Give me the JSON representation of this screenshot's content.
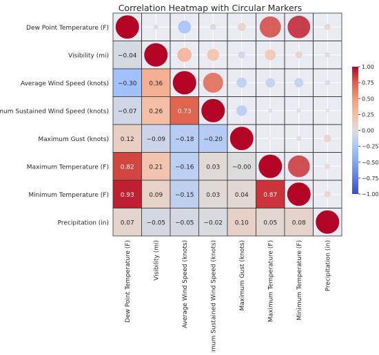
{
  "chart_data": {
    "type": "heatmap",
    "title": "Correlation Heatmap with Circular Markers",
    "variables": [
      "Dew Point Temperature (F)",
      "Visibility (mi)",
      "Average Wind Speed (knots)",
      "Maximum Sustained Wind Speed (knots)",
      "Maximum Gust (knots)",
      "Maximum Temperature (F)",
      "Minimum Temperature (F)",
      "Precipitation (in)"
    ],
    "matrix": [
      [
        1.0,
        -0.04,
        -0.3,
        -0.07,
        0.12,
        0.82,
        0.93,
        0.07
      ],
      [
        -0.04,
        1.0,
        0.36,
        0.26,
        -0.09,
        0.21,
        0.09,
        -0.05
      ],
      [
        -0.3,
        0.36,
        1.0,
        0.73,
        -0.18,
        -0.16,
        -0.15,
        -0.05
      ],
      [
        -0.07,
        0.26,
        0.73,
        1.0,
        -0.2,
        0.03,
        0.03,
        -0.02
      ],
      [
        0.12,
        -0.09,
        -0.18,
        -0.2,
        1.0,
        -0.0,
        0.04,
        0.1
      ],
      [
        0.82,
        0.21,
        -0.16,
        0.03,
        -0.0,
        1.0,
        0.87,
        0.05
      ],
      [
        0.93,
        0.09,
        -0.15,
        0.03,
        0.04,
        0.87,
        1.0,
        0.08
      ],
      [
        0.07,
        -0.05,
        -0.05,
        -0.02,
        0.1,
        0.05,
        0.08,
        1.0
      ]
    ],
    "lower_triangle": "annotated values",
    "upper_triangle": "circular markers sized by |correlation|",
    "colorbar": {
      "range": [
        -1.0,
        1.0
      ],
      "ticks": [
        "1.00",
        "0.75",
        "0.50",
        "0.25",
        "0.00",
        "−0.25",
        "−0.50",
        "−0.75",
        "−1.00"
      ],
      "tick_values": [
        1.0,
        0.75,
        0.5,
        0.25,
        0.0,
        -0.25,
        -0.5,
        -0.75,
        -1.0
      ],
      "colormap": "coolwarm",
      "placement": "right"
    },
    "grid": true
  }
}
